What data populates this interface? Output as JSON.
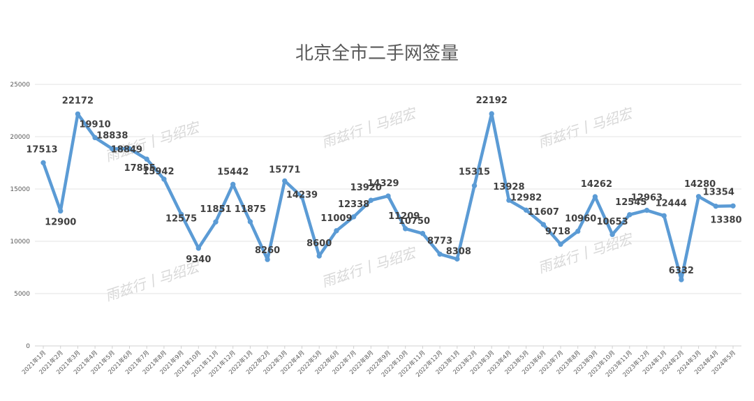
{
  "watermark": "雨兹行丨马绍宏",
  "colors": {
    "series": "#5b9bd5",
    "label": "#404040",
    "grid": "#e3e3e3",
    "title": "#595959"
  },
  "chart_data": {
    "type": "line",
    "title": "北京全市二手网签量",
    "xlabel": "",
    "ylabel": "",
    "ylim": [
      0,
      25000
    ],
    "yticks": [
      0,
      5000,
      10000,
      15000,
      20000,
      25000
    ],
    "grid": true,
    "legend": "none",
    "categories": [
      "2021年1月",
      "2021年2月",
      "2021年3月",
      "2021年4月",
      "2021年5月",
      "2021年6月",
      "2021年7月",
      "2021年8月",
      "2021年9月",
      "2021年10月",
      "2021年11月",
      "2021年12月",
      "2022年1月",
      "2022年2月",
      "2022年3月",
      "2022年4月",
      "2022年5月",
      "2022年6月",
      "2022年7月",
      "2022年8月",
      "2022年9月",
      "2022年10月",
      "2022年11月",
      "2022年12月",
      "2023年1月",
      "2023年2月",
      "2023年3月",
      "2023年4月",
      "2023年5月",
      "2023年6月",
      "2023年7月",
      "2023年8月",
      "2023年9月",
      "2023年10月",
      "2023年11月",
      "2023年12月",
      "2024年1月",
      "2024年2月",
      "2024年3月",
      "2024年4月",
      "2024年5月"
    ],
    "series": [
      {
        "values": [
          17513,
          12900,
          22172,
          19910,
          18838,
          18849,
          17855,
          15942,
          12575,
          9340,
          11851,
          15442,
          11875,
          8260,
          15771,
          14239,
          8600,
          11009,
          12338,
          13920,
          14329,
          11209,
          10750,
          8773,
          8308,
          15315,
          22192,
          13928,
          12982,
          11607,
          9718,
          10960,
          14262,
          10653,
          12545,
          12963,
          12444,
          6332,
          14280,
          13354,
          13380
        ]
      }
    ]
  }
}
